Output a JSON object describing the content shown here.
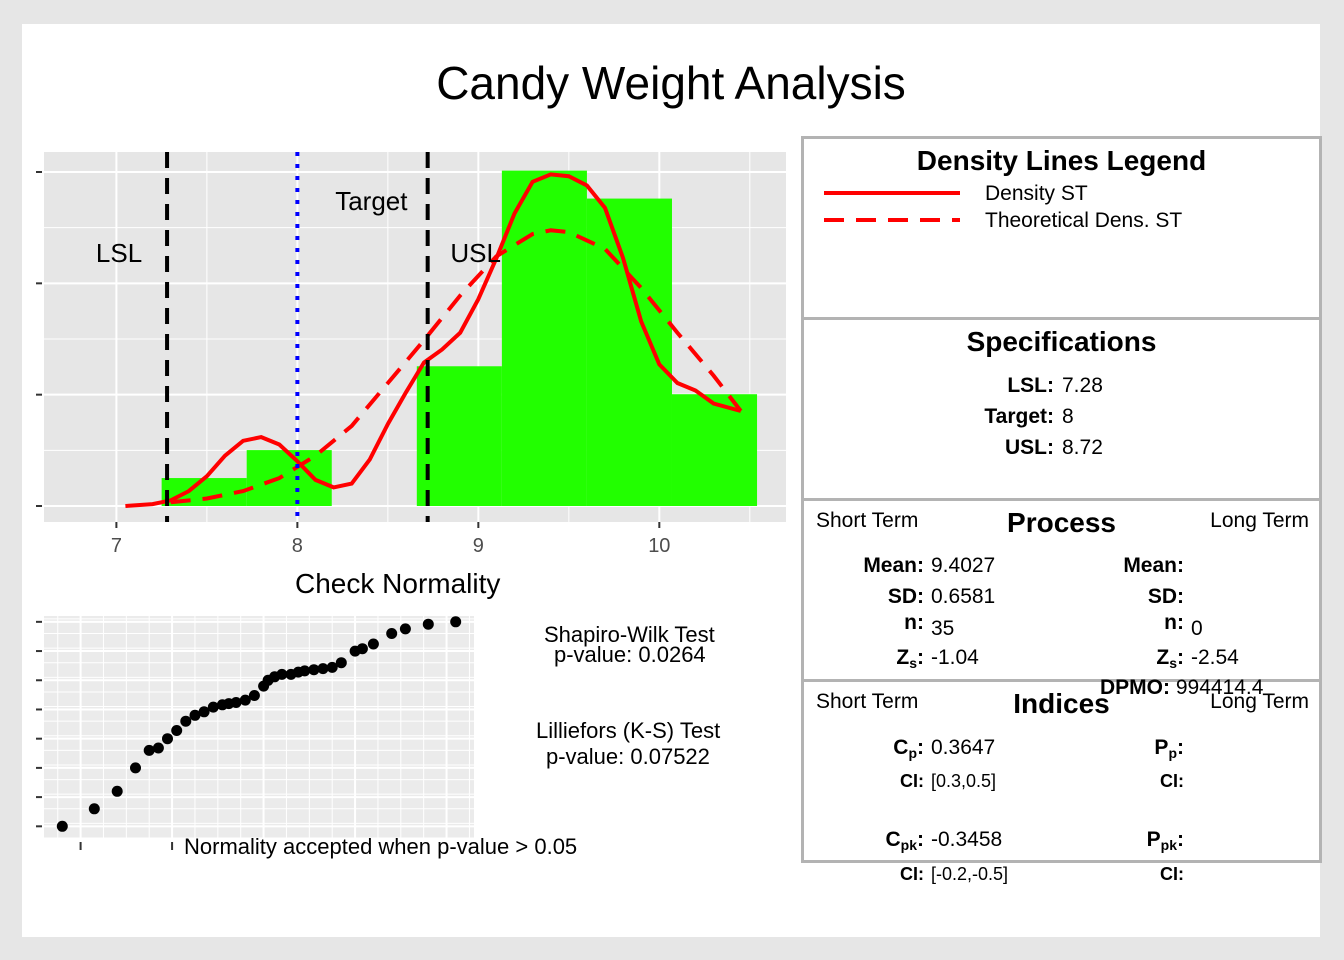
{
  "title": "Candy Weight Analysis",
  "histogram": {
    "chart_data": {
      "type": "bar",
      "xlim": [
        6.6,
        10.7
      ],
      "ylim": [
        0,
        1.9
      ],
      "x_ticks": [
        7,
        8,
        9,
        10
      ],
      "x_tick_labels": [
        "7",
        "8",
        "9",
        "10"
      ],
      "y_tick_count": 4,
      "bins": [
        {
          "start": 7.25,
          "end": 7.72,
          "value": 0.15
        },
        {
          "start": 7.72,
          "end": 8.19,
          "value": 0.3
        },
        {
          "start": 8.66,
          "end": 9.13,
          "value": 0.75
        },
        {
          "start": 9.13,
          "end": 9.6,
          "value": 1.8
        },
        {
          "start": 9.6,
          "end": 10.07,
          "value": 1.65
        },
        {
          "start": 10.07,
          "end": 10.54,
          "value": 0.6
        }
      ],
      "density_st": {
        "x": [
          7.05,
          7.2,
          7.3,
          7.4,
          7.5,
          7.6,
          7.7,
          7.8,
          7.9,
          8.0,
          8.1,
          8.2,
          8.3,
          8.4,
          8.5,
          8.6,
          8.7,
          8.8,
          8.9,
          9.0,
          9.1,
          9.2,
          9.3,
          9.4,
          9.5,
          9.6,
          9.7,
          9.8,
          9.9,
          10.0,
          10.1,
          10.2,
          10.3,
          10.45
        ],
        "y": [
          0.0,
          0.01,
          0.03,
          0.08,
          0.16,
          0.27,
          0.35,
          0.37,
          0.33,
          0.24,
          0.14,
          0.1,
          0.12,
          0.25,
          0.44,
          0.61,
          0.77,
          0.84,
          0.93,
          1.11,
          1.33,
          1.57,
          1.74,
          1.78,
          1.77,
          1.72,
          1.6,
          1.33,
          0.99,
          0.76,
          0.66,
          0.62,
          0.55,
          0.51
        ]
      },
      "density_theoretical": {
        "x": [
          7.3,
          7.5,
          7.7,
          7.9,
          8.1,
          8.3,
          8.5,
          8.7,
          8.9,
          9.1,
          9.3,
          9.4,
          9.5,
          9.7,
          9.9,
          10.1,
          10.3,
          10.45
        ],
        "y": [
          0.02,
          0.04,
          0.08,
          0.15,
          0.27,
          0.43,
          0.66,
          0.89,
          1.13,
          1.34,
          1.46,
          1.48,
          1.47,
          1.38,
          1.17,
          0.93,
          0.7,
          0.51
        ]
      },
      "lines": [
        {
          "x": 7.28,
          "label": "LSL",
          "style": "dashed",
          "color": "#000000"
        },
        {
          "x": 8.0,
          "label": "Target",
          "style": "dotted",
          "color": "#0000ff"
        },
        {
          "x": 8.72,
          "label": "USL",
          "style": "dashed",
          "color": "#000000"
        }
      ],
      "colors": {
        "bars": "#22ff00",
        "density": "#ff0000",
        "panel_bg": "#e6e6e6",
        "grid": "#ffffff"
      }
    }
  },
  "normality": {
    "title": "Check Normality",
    "chart_data": {
      "type": "scatter",
      "points": [
        [
          -2.2,
          7.3
        ],
        [
          -1.85,
          7.45
        ],
        [
          -1.6,
          7.6
        ],
        [
          -1.4,
          7.8
        ],
        [
          -1.25,
          7.95
        ],
        [
          -1.15,
          7.97
        ],
        [
          -1.05,
          8.05
        ],
        [
          -0.95,
          8.12
        ],
        [
          -0.85,
          8.2
        ],
        [
          -0.75,
          8.25
        ],
        [
          -0.65,
          8.28
        ],
        [
          -0.55,
          8.32
        ],
        [
          -0.45,
          8.34
        ],
        [
          -0.38,
          8.35
        ],
        [
          -0.3,
          8.36
        ],
        [
          -0.2,
          8.38
        ],
        [
          -0.1,
          8.42
        ],
        [
          0.0,
          8.5
        ],
        [
          0.05,
          8.55
        ],
        [
          0.12,
          8.58
        ],
        [
          0.2,
          8.6
        ],
        [
          0.3,
          8.6
        ],
        [
          0.38,
          8.62
        ],
        [
          0.45,
          8.63
        ],
        [
          0.55,
          8.64
        ],
        [
          0.65,
          8.65
        ],
        [
          0.75,
          8.66
        ],
        [
          0.85,
          8.7
        ],
        [
          1.0,
          8.8
        ],
        [
          1.08,
          8.82
        ],
        [
          1.2,
          8.86
        ],
        [
          1.4,
          8.95
        ],
        [
          1.55,
          8.99
        ],
        [
          1.8,
          9.03
        ],
        [
          2.1,
          9.05
        ]
      ],
      "xlim": [
        -2.4,
        2.3
      ],
      "ylim": [
        7.2,
        9.1
      ],
      "x_ticks": [
        -2,
        -1
      ],
      "y_ticks": [
        7.3,
        7.55,
        7.8,
        8.05,
        8.3,
        8.55,
        8.8,
        9.05
      ]
    },
    "shapiro_title": "Shapiro-Wilk Test",
    "shapiro_p": "p-value:  0.0264",
    "lillie_title": "Lilliefors (K-S) Test",
    "lillie_p": "p-value:  0.07522",
    "note": "Normality accepted when p-value > 0.05"
  },
  "legend": {
    "title": "Density Lines Legend",
    "items": [
      {
        "label": "Density ST",
        "style": "solid",
        "color": "#ff0000"
      },
      {
        "label": "Theoretical Dens. ST",
        "style": "dashed",
        "color": "#ff0000"
      }
    ]
  },
  "specs": {
    "title": "Specifications",
    "lsl_label": "LSL:",
    "lsl": "7.28",
    "target_label": "Target:",
    "target": "8",
    "usl_label": "USL:",
    "usl": "8.72"
  },
  "process": {
    "title": "Process",
    "short": "Short Term",
    "long": "Long Term",
    "mean_label": "Mean:",
    "mean_st": "9.4027",
    "sd_label": "SD:",
    "sd_st": "0.6581",
    "n_label": "n:",
    "n_st": "35",
    "zs_label": "Z",
    "zs_sub": "s",
    "zs_st": "-1.04",
    "mean_lt": "",
    "sd_lt": "",
    "n_lt": "0",
    "zs_lt": "-2.54",
    "dpmo_label": "DPMO:",
    "dpmo": "994414.4"
  },
  "indices": {
    "title": "Indices",
    "short": "Short Term",
    "long": "Long Term",
    "cp_label": "C",
    "cp_sub": "p",
    "cp": "0.3647",
    "ci_label": "CI:",
    "cp_ci": "[0.3,0.5]",
    "cpk_label": "C",
    "cpk_sub": "pk",
    "cpk": "-0.3458",
    "cpk_ci": "[-0.2,-0.5]",
    "pp_label": "P",
    "pp_sub": "p",
    "ppk_label": "P",
    "ppk_sub": "pk"
  }
}
